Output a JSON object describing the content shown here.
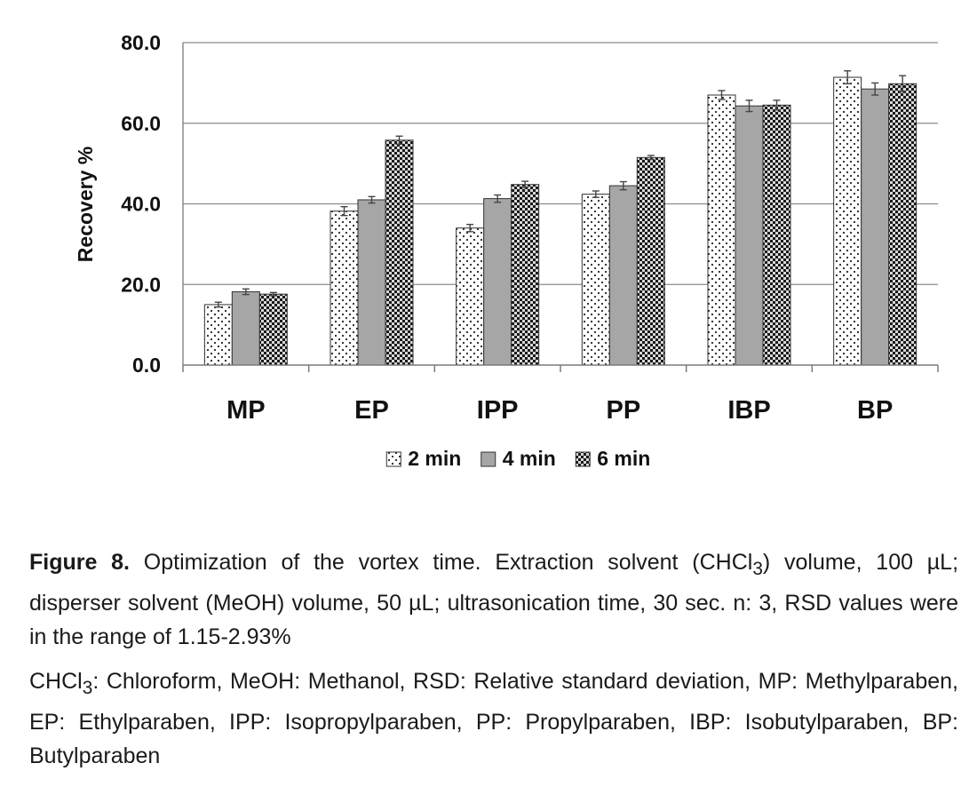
{
  "chart_data": {
    "type": "bar",
    "title": "",
    "xlabel": "",
    "ylabel": "Recovery %",
    "ylim": [
      0,
      80
    ],
    "yticks": [
      "0.0",
      "20.0",
      "40.0",
      "60.0",
      "80.0"
    ],
    "grid": true,
    "legend_position": "bottom",
    "categories": [
      "MP",
      "EP",
      "IPP",
      "PP",
      "IBP",
      "BP"
    ],
    "series": [
      {
        "name": "2 min",
        "pattern": "dots",
        "values": [
          15.0,
          38.2,
          34.0,
          42.4,
          67.0,
          71.4
        ],
        "errors": [
          0.6,
          1.1,
          0.9,
          0.8,
          1.1,
          1.6
        ]
      },
      {
        "name": "4 min",
        "pattern": "solid-gray",
        "values": [
          18.2,
          41.0,
          41.3,
          44.5,
          64.3,
          68.5
        ],
        "errors": [
          0.7,
          0.8,
          0.9,
          1.0,
          1.4,
          1.5
        ]
      },
      {
        "name": "6 min",
        "pattern": "checker",
        "values": [
          17.6,
          55.8,
          44.8,
          51.5,
          64.5,
          69.8
        ],
        "errors": [
          0.4,
          1.0,
          0.8,
          0.5,
          1.2,
          2.0
        ]
      }
    ]
  },
  "caption": {
    "label": "Figure 8.",
    "text_before_sub": " Optimization of the vortex time. Extraction solvent (CHCl",
    "sub": "3",
    "text_after_sub": ") volume, 100 µL; disperser solvent (MeOH) volume, 50 µL; ultrasonication time, 30 sec. n: 3, RSD values were in the range of 1.15-2.93%"
  },
  "abbreviations": {
    "start": "CHCl",
    "sub": "3",
    "rest": ": Chloroform, MeOH: Methanol, RSD: Relative standard deviation, MP: Methylparaben, EP: Ethylparaben, IPP: Isopropylparaben, PP: Propylparaben, IBP: Isobutylparaben, BP: Butylparaben"
  },
  "colors": {
    "grid": "#8c8c8c",
    "axis": "#7a7a7a",
    "gray_bar": "#a6a6a6",
    "bar_stroke": "#333333",
    "checker_dark": "#1a1a1a"
  }
}
